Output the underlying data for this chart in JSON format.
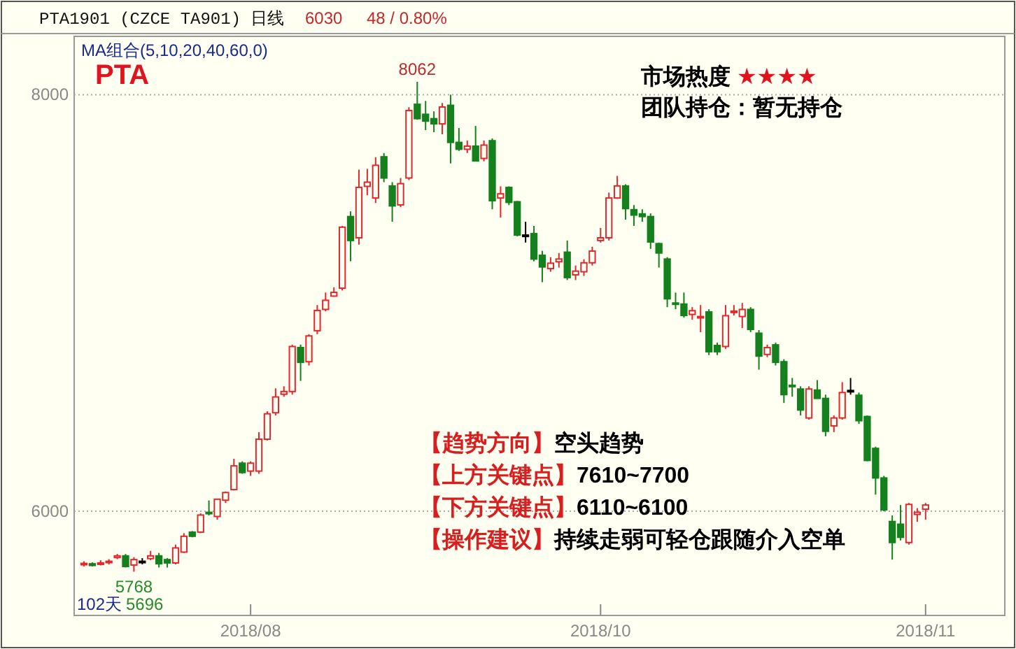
{
  "chart_data": {
    "type": "candlestick",
    "title": "PTA",
    "categories": [
      null,
      null,
      null,
      null,
      null,
      null,
      null,
      null,
      null,
      null,
      null,
      null,
      null,
      null,
      null,
      null,
      null,
      null,
      null,
      null,
      "2018/08",
      null,
      null,
      null,
      null,
      null,
      null,
      null,
      null,
      null,
      null,
      null,
      null,
      null,
      null,
      null,
      null,
      null,
      null,
      null,
      null,
      null,
      null,
      null,
      null,
      null,
      null,
      null,
      null,
      null,
      null,
      null,
      null,
      null,
      null,
      null,
      null,
      null,
      null,
      null,
      null,
      null,
      "2018/10",
      null,
      null,
      null,
      null,
      null,
      null,
      null,
      null,
      null,
      null,
      null,
      null,
      null,
      null,
      null,
      null,
      null,
      null,
      null,
      null,
      null,
      null,
      null,
      null,
      null,
      null,
      null,
      null,
      null,
      null,
      null,
      null,
      null,
      null,
      null,
      null,
      null,
      null,
      "2018/11"
    ],
    "ohlc": [
      [
        5745,
        5760,
        5735,
        5750
      ],
      [
        5748,
        5755,
        5735,
        5740
      ],
      [
        5748,
        5765,
        5740,
        5752
      ],
      [
        5755,
        5770,
        5745,
        5760
      ],
      [
        5778,
        5795,
        5770,
        5786
      ],
      [
        5786,
        5795,
        5730,
        5735
      ],
      [
        5742,
        5780,
        5710,
        5768
      ],
      [
        5760,
        5775,
        5745,
        5760
      ],
      [
        5773,
        5810,
        5765,
        5786
      ],
      [
        5786,
        5800,
        5730,
        5748
      ],
      [
        5768,
        5775,
        5730,
        5752
      ],
      [
        5752,
        5840,
        5745,
        5824
      ],
      [
        5804,
        5895,
        5800,
        5880
      ],
      [
        5900,
        5905,
        5875,
        5880
      ],
      [
        5900,
        5990,
        5895,
        5982
      ],
      [
        5995,
        6052,
        5980,
        5990
      ],
      [
        5975,
        6060,
        5960,
        6058
      ],
      [
        6053,
        6095,
        6040,
        6090
      ],
      [
        6104,
        6252,
        6100,
        6218
      ],
      [
        6231,
        6240,
        6180,
        6186
      ],
      [
        6193,
        6240,
        6170,
        6231
      ],
      [
        6193,
        6380,
        6180,
        6346
      ],
      [
        6346,
        6480,
        6340,
        6468
      ],
      [
        6473,
        6590,
        6460,
        6549
      ],
      [
        6562,
        6600,
        6550,
        6575
      ],
      [
        6575,
        6800,
        6560,
        6791
      ],
      [
        6786,
        6800,
        6626,
        6715
      ],
      [
        6718,
        6850,
        6700,
        6842
      ],
      [
        6867,
        6990,
        6850,
        6964
      ],
      [
        6969,
        7050,
        6960,
        7013
      ],
      [
        7033,
        7075,
        7030,
        7051
      ],
      [
        7071,
        7370,
        7060,
        7364
      ],
      [
        7415,
        7440,
        7200,
        7300
      ],
      [
        7313,
        7640,
        7280,
        7555
      ],
      [
        7560,
        7644,
        7517,
        7580
      ],
      [
        7504,
        7700,
        7480,
        7661
      ],
      [
        7702,
        7720,
        7580,
        7600
      ],
      [
        7562,
        7580,
        7390,
        7466
      ],
      [
        7471,
        7600,
        7460,
        7573
      ],
      [
        7600,
        7940,
        7590,
        7924
      ],
      [
        7954,
        8062,
        7880,
        7885
      ],
      [
        7906,
        7970,
        7830,
        7873
      ],
      [
        7885,
        7920,
        7820,
        7860
      ],
      [
        7860,
        7960,
        7810,
        7941
      ],
      [
        7949,
        8000,
        7670,
        7771
      ],
      [
        7771,
        7840,
        7730,
        7738
      ],
      [
        7738,
        7780,
        7720,
        7753
      ],
      [
        7753,
        7850,
        7680,
        7682
      ],
      [
        7694,
        7780,
        7680,
        7758
      ],
      [
        7779,
        7790,
        7450,
        7491
      ],
      [
        7504,
        7560,
        7410,
        7524
      ],
      [
        7555,
        7560,
        7470,
        7483
      ],
      [
        7486,
        7490,
        7320,
        7326
      ],
      [
        7326,
        7390,
        7290,
        7326
      ],
      [
        7333,
        7370,
        7200,
        7211
      ],
      [
        7229,
        7250,
        7100,
        7173
      ],
      [
        7165,
        7220,
        7150,
        7191
      ],
      [
        7198,
        7240,
        7170,
        7211
      ],
      [
        7244,
        7300,
        7110,
        7122
      ],
      [
        7135,
        7180,
        7110,
        7153
      ],
      [
        7150,
        7210,
        7130,
        7193
      ],
      [
        7193,
        7270,
        7180,
        7249
      ],
      [
        7300,
        7360,
        7290,
        7313
      ],
      [
        7313,
        7530,
        7300,
        7504
      ],
      [
        7504,
        7610,
        7500,
        7562
      ],
      [
        7562,
        7570,
        7400,
        7453
      ],
      [
        7448,
        7470,
        7370,
        7422
      ],
      [
        7428,
        7450,
        7390,
        7415
      ],
      [
        7415,
        7430,
        7260,
        7293
      ],
      [
        7285,
        7290,
        7170,
        7240
      ],
      [
        7211,
        7220,
        6980,
        7020
      ],
      [
        7000,
        7050,
        6970,
        6995
      ],
      [
        6995,
        7050,
        6930,
        6940
      ],
      [
        6945,
        6980,
        6920,
        6963
      ],
      [
        6930,
        6990,
        6860,
        6935
      ],
      [
        6957,
        6970,
        6750,
        6766
      ],
      [
        6796,
        6810,
        6750,
        6766
      ],
      [
        6791,
        6990,
        6780,
        6939
      ],
      [
        6955,
        6990,
        6940,
        6961
      ],
      [
        6935,
        7000,
        6880,
        6969
      ],
      [
        6969,
        6980,
        6860,
        6873
      ],
      [
        6855,
        6870,
        6680,
        6745
      ],
      [
        6753,
        6800,
        6740,
        6786
      ],
      [
        6799,
        6810,
        6700,
        6715
      ],
      [
        6718,
        6730,
        6520,
        6560
      ],
      [
        6605,
        6640,
        6550,
        6600
      ],
      [
        6587,
        6600,
        6460,
        6486
      ],
      [
        6448,
        6600,
        6440,
        6587
      ],
      [
        6582,
        6630,
        6540,
        6542
      ],
      [
        6542,
        6560,
        6360,
        6384
      ],
      [
        6410,
        6460,
        6380,
        6448
      ],
      [
        6448,
        6620,
        6440,
        6570
      ],
      [
        6580,
        6640,
        6560,
        6580
      ],
      [
        6557,
        6570,
        6420,
        6435
      ],
      [
        6455,
        6460,
        6240,
        6244
      ],
      [
        6302,
        6310,
        6080,
        6160
      ],
      [
        6160,
        6170,
        6000,
        6007
      ],
      [
        5951,
        5980,
        5768,
        5850
      ],
      [
        5938,
        6030,
        5860,
        5875
      ],
      [
        5850,
        6040,
        5840,
        6033
      ],
      [
        5985,
        6015,
        5950,
        5995
      ],
      [
        6010,
        6040,
        5960,
        6030
      ]
    ],
    "colors": [
      "#e0282e",
      "#15801e",
      "#e0282e",
      "#e0282e",
      "#e0282e",
      "#15801e",
      "#e0282e",
      "#000000",
      "#e0282e",
      "#15801e",
      "#15801e",
      "#e0282e",
      "#e0282e",
      "#15801e",
      "#e0282e",
      "#15801e",
      "#e0282e",
      "#e0282e",
      "#e0282e",
      "#15801e",
      "#e0282e",
      "#e0282e",
      "#e0282e",
      "#e0282e",
      "#e0282e",
      "#e0282e",
      "#15801e",
      "#e0282e",
      "#e0282e",
      "#e0282e",
      "#e0282e",
      "#e0282e",
      "#15801e",
      "#e0282e",
      "#e0282e",
      "#e0282e",
      "#15801e",
      "#15801e",
      "#e0282e",
      "#e0282e",
      "#15801e",
      "#15801e",
      "#15801e",
      "#e0282e",
      "#15801e",
      "#15801e",
      "#e0282e",
      "#15801e",
      "#e0282e",
      "#15801e",
      "#e0282e",
      "#15801e",
      "#15801e",
      "#000000",
      "#15801e",
      "#15801e",
      "#e0282e",
      "#e0282e",
      "#15801e",
      "#e0282e",
      "#e0282e",
      "#e0282e",
      "#e0282e",
      "#e0282e",
      "#e0282e",
      "#15801e",
      "#15801e",
      "#15801e",
      "#15801e",
      "#15801e",
      "#15801e",
      "#15801e",
      "#15801e",
      "#e0282e",
      "#e0282e",
      "#15801e",
      "#15801e",
      "#e0282e",
      "#e0282e",
      "#e0282e",
      "#15801e",
      "#15801e",
      "#e0282e",
      "#15801e",
      "#15801e",
      "#15801e",
      "#15801e",
      "#e0282e",
      "#15801e",
      "#15801e",
      "#e0282e",
      "#e0282e",
      "#000000",
      "#15801e",
      "#15801e",
      "#15801e",
      "#15801e",
      "#15801e",
      "#15801e",
      "#e0282e",
      "#e0282e",
      "#e0282e"
    ],
    "ylim": [
      5500,
      8280
    ],
    "yticks": [
      6000,
      8000
    ],
    "grid": "y",
    "annotations": [
      "PTA1901 (CZCE TA901) 日线",
      "6030",
      "48 / 0.80%",
      "MA组合(5,10,20,40,60,0)",
      "8062",
      "5768",
      "102天",
      "5696",
      "市场热度 ★★★★",
      "团队持仓：暂无持仓",
      "【趋势方向】空头趋势",
      "【上方关键点】7610~7700",
      "【下方关键点】6110~6100",
      "【操作建议】持续走弱可轻仓跟随介入空单"
    ]
  }
}
